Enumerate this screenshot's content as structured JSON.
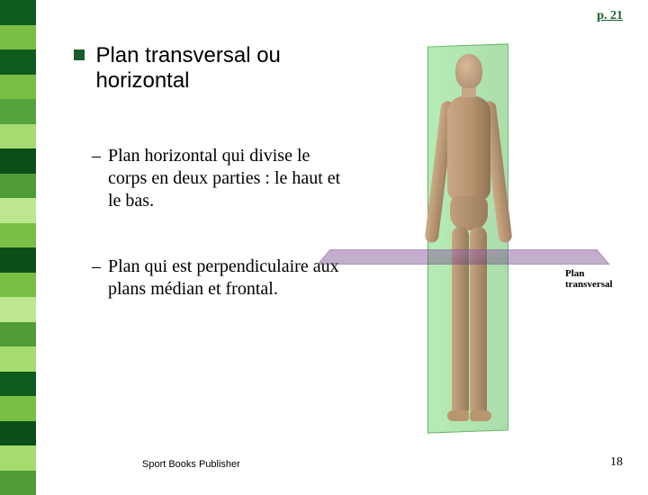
{
  "page_ref": "p. 21",
  "title": "Plan transversal ou horizontal",
  "subitems": [
    "Plan horizontal qui divise le corps en deux parties : le haut et le bas.",
    "Plan qui est perpendiculaire aux plans médian et frontal."
  ],
  "figure_label": "Plan transversal",
  "footer": "Sport Books Publisher",
  "page_number": "18",
  "stripe_colors": [
    "#0f5d1e",
    "#7abf44",
    "#0f5d1e",
    "#7abf44",
    "#54a33c",
    "#a6db6f",
    "#0a4f18",
    "#4f9c36",
    "#bde78f",
    "#7abf44",
    "#0a4f18",
    "#7abf44",
    "#bde78f",
    "#4f9c36",
    "#a6db6f",
    "#0f5d1e",
    "#7abf44",
    "#0a4f18",
    "#a6db6f",
    "#4f9c36"
  ],
  "colors": {
    "bullet": "#175c2a",
    "page_ref": "#1a5f2e",
    "plane_vertical": "rgba(100,200,100,0.5)",
    "plane_horizontal": "rgba(130,90,150,0.48)"
  }
}
